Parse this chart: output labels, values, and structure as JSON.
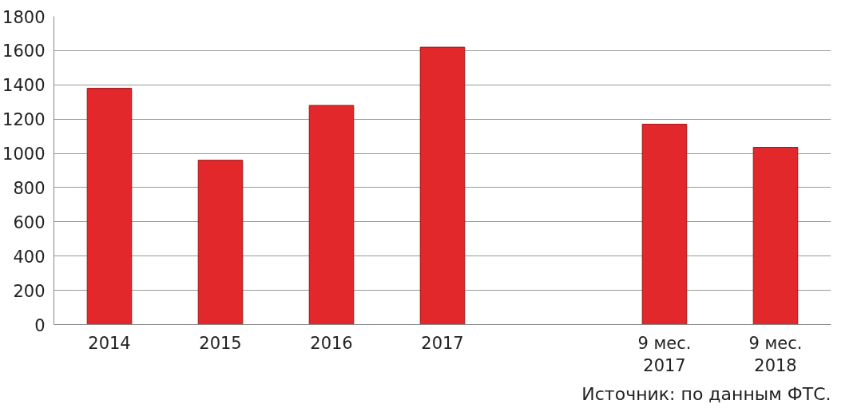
{
  "chart_data": {
    "type": "bar",
    "categories": [
      "2014",
      "2015",
      "2016",
      "2017",
      null,
      "9 мес.\n2017",
      "9 мес.\n2018"
    ],
    "values": [
      1380,
      960,
      1280,
      1620,
      null,
      1170,
      1035
    ],
    "color": "#e2282a",
    "ylim": [
      0,
      1800
    ],
    "yticks": [
      0,
      200,
      400,
      600,
      800,
      1000,
      1200,
      1400,
      1600,
      1800
    ],
    "grid": "y",
    "annotations": [
      "Источник: по данным ФТС."
    ]
  }
}
